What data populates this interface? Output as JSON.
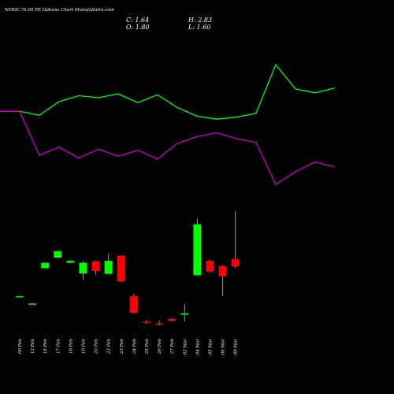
{
  "header": {
    "title": "NMDC 76.00 PE Options  Chart MunafaSutra.com",
    "c_text": "C: 1.64",
    "h_text": "H: 2.83",
    "o_text": "O: 1.80",
    "l_text": "L: 1.60"
  },
  "colors": {
    "background": "#000000",
    "green_line": "#00ff00",
    "magenta_line": "#cc00cc",
    "up_candle": "#00ff00",
    "down_candle": "#ff0000",
    "wick": "#9a9a9a",
    "text": "#ffffff"
  },
  "chart_data": [
    {
      "type": "line",
      "x": [
        "",
        "09 Feb",
        "12 Feb",
        "16 Feb",
        "17 Feb",
        "19 Feb",
        "20 Feb",
        "22 Feb",
        "23 Feb",
        "24 Feb",
        "25 Feb",
        "26 Feb",
        "27 Feb",
        "02 Mar",
        "04 Mar",
        "05 Mar",
        "06 Mar",
        "09 Mar"
      ],
      "series": [
        {
          "color": "#00ff00",
          "values": [
            0.72,
            0.72,
            0.68,
            0.82,
            0.88,
            0.86,
            0.9,
            0.81,
            0.89,
            0.76,
            0.67,
            0.64,
            0.66,
            0.7,
            1.2,
            0.95,
            0.91,
            0.96
          ]
        },
        {
          "color": "#cc00cc",
          "values": [
            0.72,
            0.72,
            0.27,
            0.35,
            0.24,
            0.33,
            0.26,
            0.32,
            0.23,
            0.39,
            0.46,
            0.5,
            0.44,
            0.4,
            -0.03,
            0.1,
            0.2,
            0.15
          ]
        }
      ]
    },
    {
      "type": "candlestick",
      "categories": [
        "09 Feb",
        "12 Feb",
        "16 Feb",
        "17 Feb",
        "18 Feb",
        "19 Feb",
        "20 Feb",
        "22 Feb",
        "23 Feb",
        "24 Feb",
        "25 Feb",
        "26 Feb",
        "27 Feb",
        "02 Mar",
        "04 Mar",
        "05 Mar",
        "06 Mar",
        "09 Mar"
      ],
      "open": [
        1.0,
        0.84,
        1.6,
        1.83,
        1.72,
        1.49,
        1.75,
        1.48,
        1.87,
        1.0,
        0.45,
        0.41,
        0.51,
        0.6,
        1.45,
        1.76,
        1.65,
        1.8
      ],
      "close": [
        1.0,
        0.84,
        1.72,
        1.97,
        1.76,
        1.72,
        1.54,
        1.76,
        1.32,
        0.64,
        0.43,
        0.4,
        0.47,
        0.63,
        2.55,
        1.53,
        1.43,
        1.64
      ],
      "high": [
        1.01,
        0.85,
        1.72,
        1.97,
        1.77,
        1.75,
        1.77,
        1.91,
        1.87,
        1.05,
        0.5,
        0.48,
        0.53,
        0.83,
        2.67,
        1.78,
        1.67,
        2.83
      ],
      "low": [
        0.99,
        0.83,
        1.6,
        1.83,
        1.71,
        1.35,
        1.46,
        1.47,
        1.3,
        0.63,
        0.4,
        0.37,
        0.46,
        0.46,
        1.45,
        1.51,
        1.0,
        1.6
      ],
      "ylim": [
        0.2,
        3.0
      ]
    }
  ]
}
